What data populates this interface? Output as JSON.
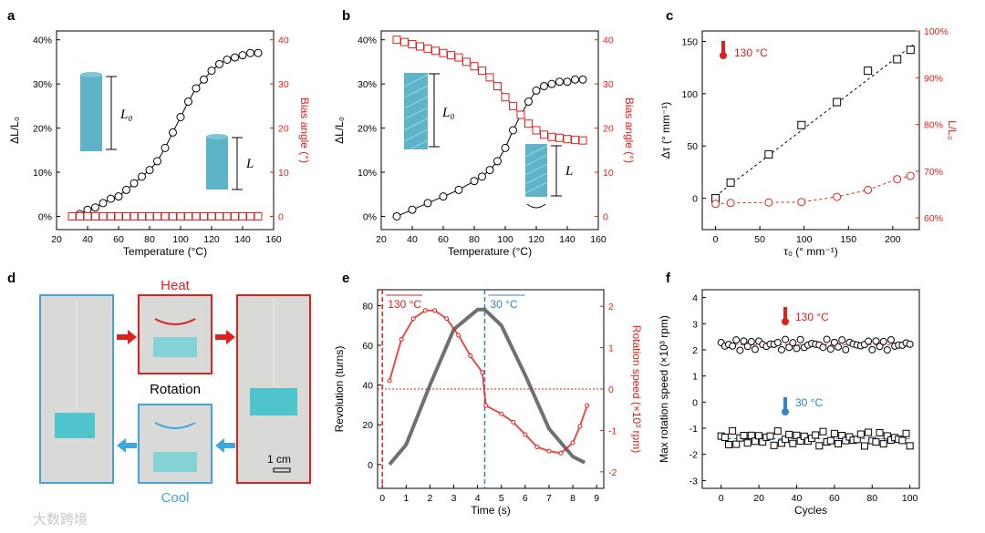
{
  "panels": {
    "a": {
      "letter": "a"
    },
    "b": {
      "letter": "b"
    },
    "c": {
      "letter": "c"
    },
    "d": {
      "letter": "d"
    },
    "e": {
      "letter": "e"
    },
    "f": {
      "letter": "f"
    }
  },
  "labels": {
    "dL_L0": "ΔL/L₀",
    "bias_angle": "Bias angle (°)",
    "temperature": "Temperature (°C)",
    "delta_tau": "Δτ (° mm⁻¹)",
    "L_over_L0": "L/L₀",
    "tau0": "τ₀ (° mm⁻¹)",
    "revolution": "Revolution (turns)",
    "rotation_speed": "Rotation speed (×10³ rpm)",
    "time": "Time (s)",
    "max_rotation_speed": "Max rotation speed (×10³ rpm)",
    "cycles": "Cycles",
    "L0_symbol": "L₀",
    "L_symbol": "L",
    "hot_130": "130 °C",
    "cold_30": "30 °C",
    "heat": "Heat",
    "cool": "Cool",
    "rotation": "Rotation",
    "scale_bar": "1 cm",
    "watermark": "大数跨境"
  },
  "colors": {
    "red": "#e0201e",
    "blue": "#2f86c6",
    "black": "#000000",
    "fiber": "#5fb3c8",
    "box_blue": "#3fa7dd",
    "box_red": "#e0201e"
  },
  "chart_data": [
    {
      "panel": "a",
      "type": "scatter",
      "xlabel": "Temperature (°C)",
      "ylabel": "ΔL/L₀",
      "y2label": "Bias angle (°)",
      "xlim": [
        20,
        160
      ],
      "ylim": [
        -0.03,
        0.42
      ],
      "y2lim": [
        -3,
        42
      ],
      "xticks": [
        20,
        40,
        60,
        80,
        100,
        120,
        140,
        160
      ],
      "yticks": [
        "0%",
        "10%",
        "20%",
        "30%",
        "40%"
      ],
      "y2ticks": [
        0,
        10,
        20,
        30,
        40
      ],
      "series": [
        {
          "axis": "left",
          "marker": "circle",
          "color": "#000000",
          "x": [
            30,
            35,
            40,
            45,
            50,
            55,
            60,
            65,
            70,
            75,
            80,
            85,
            90,
            95,
            100,
            105,
            110,
            115,
            120,
            125,
            130,
            135,
            140,
            145,
            150
          ],
          "y": [
            0.0,
            0.005,
            0.015,
            0.02,
            0.03,
            0.04,
            0.045,
            0.06,
            0.075,
            0.09,
            0.105,
            0.125,
            0.155,
            0.19,
            0.225,
            0.26,
            0.29,
            0.31,
            0.33,
            0.345,
            0.355,
            0.36,
            0.365,
            0.37,
            0.37
          ]
        },
        {
          "axis": "right",
          "marker": "square",
          "color": "#e0201e",
          "x": [
            30,
            35,
            40,
            45,
            50,
            55,
            60,
            65,
            70,
            75,
            80,
            85,
            90,
            95,
            100,
            105,
            110,
            115,
            120,
            125,
            130,
            135,
            140,
            145,
            150
          ],
          "y": [
            0,
            0,
            0,
            0,
            0,
            0,
            0,
            0,
            0,
            0,
            0,
            0,
            0,
            0,
            0,
            0,
            0,
            0,
            0,
            0,
            0,
            0,
            0,
            0,
            0
          ]
        }
      ]
    },
    {
      "panel": "b",
      "type": "scatter",
      "xlabel": "Temperature (°C)",
      "ylabel": "ΔL/L₀",
      "y2label": "Bias angle (°)",
      "xlim": [
        20,
        160
      ],
      "ylim": [
        -0.03,
        0.42
      ],
      "y2lim": [
        -3,
        42
      ],
      "xticks": [
        20,
        40,
        60,
        80,
        100,
        120,
        140,
        160
      ],
      "yticks": [
        "0%",
        "10%",
        "20%",
        "30%",
        "40%"
      ],
      "y2ticks": [
        0,
        10,
        20,
        30,
        40
      ],
      "series": [
        {
          "axis": "left",
          "marker": "circle",
          "color": "#000000",
          "x": [
            30,
            40,
            50,
            60,
            70,
            80,
            85,
            90,
            95,
            100,
            105,
            110,
            115,
            120,
            125,
            130,
            135,
            140,
            145,
            150
          ],
          "y": [
            0.0,
            0.015,
            0.03,
            0.045,
            0.06,
            0.08,
            0.09,
            0.105,
            0.125,
            0.155,
            0.195,
            0.23,
            0.26,
            0.285,
            0.295,
            0.3,
            0.305,
            0.305,
            0.31,
            0.31
          ]
        },
        {
          "axis": "right",
          "marker": "square",
          "color": "#e0201e",
          "x": [
            30,
            35,
            40,
            45,
            50,
            55,
            60,
            65,
            70,
            75,
            80,
            85,
            90,
            95,
            100,
            105,
            110,
            115,
            120,
            125,
            130,
            135,
            140,
            145,
            150
          ],
          "y": [
            40,
            39.5,
            39,
            38.5,
            38,
            37.5,
            37,
            36.5,
            36,
            35,
            34,
            33,
            31.5,
            29.5,
            27,
            25,
            23,
            21,
            19.5,
            18.5,
            18,
            17.8,
            17.5,
            17.3,
            17.2
          ]
        }
      ]
    },
    {
      "panel": "c",
      "type": "scatter",
      "xlabel": "τ₀ (° mm⁻¹)",
      "ylabel": "Δτ (° mm⁻¹)",
      "y2label": "L/L₀",
      "xlim": [
        -15,
        230
      ],
      "ylim": [
        -30,
        160
      ],
      "y2lim": [
        0.575,
        1.0
      ],
      "xticks": [
        0,
        50,
        100,
        150,
        200
      ],
      "yticks": [
        0,
        50,
        100,
        150
      ],
      "y2ticks": [
        "60%",
        "70%",
        "80%",
        "90%",
        "100%"
      ],
      "annotation": "130 °C",
      "series": [
        {
          "axis": "left",
          "marker": "square",
          "color": "#000000",
          "x": [
            0,
            17,
            60,
            97,
            137,
            172,
            205,
            220
          ],
          "y": [
            0,
            15,
            42,
            70,
            92,
            122,
            133,
            142
          ]
        },
        {
          "axis": "right",
          "marker": "circle",
          "color": "#e0201e",
          "x": [
            0,
            17,
            60,
            97,
            137,
            172,
            205,
            220
          ],
          "y": [
            0.63,
            0.632,
            0.633,
            0.634,
            0.645,
            0.66,
            0.683,
            0.69
          ]
        }
      ]
    },
    {
      "panel": "e",
      "type": "line",
      "xlabel": "Time (s)",
      "ylabel": "Revolution (turns)",
      "y2label": "Rotation speed (×10³ rpm)",
      "xlim": [
        -0.2,
        9.3
      ],
      "ylim": [
        -12,
        88
      ],
      "y2lim": [
        -2.4,
        2.4
      ],
      "xticks": [
        0,
        1,
        2,
        3,
        4,
        5,
        6,
        7,
        8,
        9
      ],
      "yticks": [
        0,
        20,
        40,
        60,
        80
      ],
      "y2ticks": [
        -2,
        -1,
        0,
        1,
        2
      ],
      "annotations": [
        "130 °C",
        "30 °C"
      ],
      "switch_times": [
        0,
        4.3
      ],
      "series": [
        {
          "axis": "left",
          "marker": "diamond",
          "color": "#000000",
          "x": [
            0.3,
            1,
            2,
            3,
            4,
            4.3,
            5,
            6,
            7,
            8,
            8.5
          ],
          "y": [
            0,
            10,
            40,
            68,
            78,
            78,
            70,
            45,
            18,
            4,
            1
          ]
        },
        {
          "axis": "right",
          "marker": "circle",
          "color": "#e0201e",
          "x": [
            0.3,
            0.8,
            1.3,
            1.8,
            2.2,
            2.7,
            3.2,
            3.7,
            4.2,
            4.35,
            5,
            5.5,
            6,
            6.5,
            7,
            7.5,
            8,
            8.3,
            8.6
          ],
          "y": [
            0.2,
            1.2,
            1.7,
            1.9,
            1.9,
            1.7,
            1.3,
            0.8,
            0.4,
            -0.4,
            -0.6,
            -0.8,
            -1.1,
            -1.4,
            -1.5,
            -1.55,
            -1.3,
            -0.9,
            -0.4
          ]
        }
      ]
    },
    {
      "panel": "f",
      "type": "scatter",
      "xlabel": "Cycles",
      "ylabel": "Max rotation speed (×10³ rpm)",
      "xlim": [
        -10,
        105
      ],
      "ylim": [
        -3.3,
        4.3
      ],
      "xticks": [
        0,
        20,
        40,
        60,
        80,
        100
      ],
      "yticks": [
        -3,
        -2,
        -1,
        0,
        1,
        2,
        3,
        4
      ],
      "annotations": [
        "130 °C",
        "30 °C"
      ],
      "series": [
        {
          "name": "130 °C",
          "marker": "circle",
          "color": "#000000",
          "mean": 2.2,
          "values_range": [
            1.9,
            2.5
          ]
        },
        {
          "name": "30 °C",
          "marker": "square",
          "color": "#000000",
          "mean": -1.4,
          "values_range": [
            -1.7,
            -1.0
          ]
        }
      ]
    }
  ]
}
